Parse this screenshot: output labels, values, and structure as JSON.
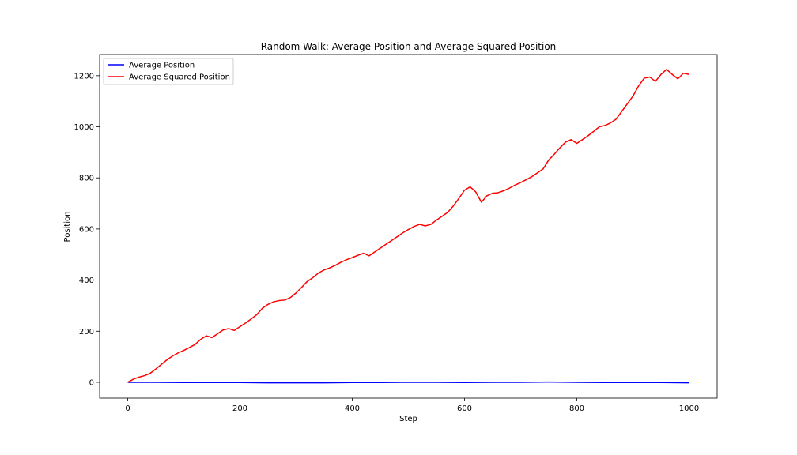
{
  "chart_data": {
    "type": "line",
    "title": "Random Walk: Average Position and Average Squared Position",
    "xlabel": "Step",
    "ylabel": "Position",
    "xlim": [
      -50,
      1050
    ],
    "ylim": [
      -62,
      1283
    ],
    "xticks": [
      0,
      200,
      400,
      600,
      800,
      1000
    ],
    "yticks": [
      0,
      200,
      400,
      600,
      800,
      1000,
      1200
    ],
    "grid": false,
    "legend_position": "upper-left",
    "series": [
      {
        "name": "Average Position",
        "color": "#0000ff",
        "x": [
          0,
          50,
          100,
          150,
          200,
          250,
          300,
          350,
          400,
          450,
          500,
          550,
          600,
          650,
          700,
          750,
          800,
          850,
          900,
          950,
          1000
        ],
        "y": [
          0,
          0,
          -1,
          -1,
          -1,
          -2,
          -2,
          -2,
          -1,
          -1,
          0,
          0,
          -1,
          0,
          0,
          1,
          0,
          -1,
          -1,
          -1,
          -2
        ]
      },
      {
        "name": "Average Squared Position",
        "color": "#ff0000",
        "x": [
          0,
          10,
          20,
          30,
          40,
          50,
          60,
          70,
          80,
          90,
          100,
          110,
          120,
          130,
          140,
          150,
          160,
          170,
          180,
          190,
          200,
          210,
          220,
          230,
          240,
          250,
          260,
          270,
          280,
          290,
          300,
          310,
          320,
          330,
          340,
          350,
          360,
          370,
          380,
          390,
          400,
          410,
          420,
          430,
          440,
          450,
          460,
          470,
          480,
          490,
          500,
          510,
          520,
          530,
          540,
          550,
          560,
          570,
          580,
          590,
          600,
          610,
          620,
          630,
          640,
          650,
          660,
          670,
          680,
          690,
          700,
          710,
          720,
          730,
          740,
          750,
          760,
          770,
          780,
          790,
          800,
          810,
          820,
          830,
          840,
          850,
          860,
          870,
          880,
          890,
          900,
          910,
          920,
          930,
          940,
          950,
          960,
          970,
          980,
          990,
          1000
        ],
        "y": [
          0,
          12,
          20,
          26,
          35,
          52,
          70,
          88,
          103,
          115,
          125,
          136,
          148,
          168,
          182,
          175,
          190,
          205,
          210,
          203,
          218,
          232,
          248,
          265,
          290,
          305,
          315,
          320,
          322,
          332,
          350,
          372,
          395,
          410,
          428,
          440,
          448,
          458,
          470,
          480,
          488,
          497,
          505,
          495,
          510,
          525,
          540,
          555,
          570,
          585,
          598,
          610,
          618,
          612,
          618,
          635,
          650,
          665,
          690,
          720,
          752,
          765,
          745,
          705,
          730,
          740,
          742,
          750,
          760,
          772,
          782,
          793,
          805,
          820,
          835,
          870,
          893,
          918,
          940,
          950,
          935,
          950,
          965,
          982,
          1000,
          1005,
          1015,
          1030,
          1060,
          1090,
          1120,
          1160,
          1190,
          1195,
          1178,
          1205,
          1225,
          1205,
          1188,
          1210,
          1205
        ]
      }
    ]
  }
}
